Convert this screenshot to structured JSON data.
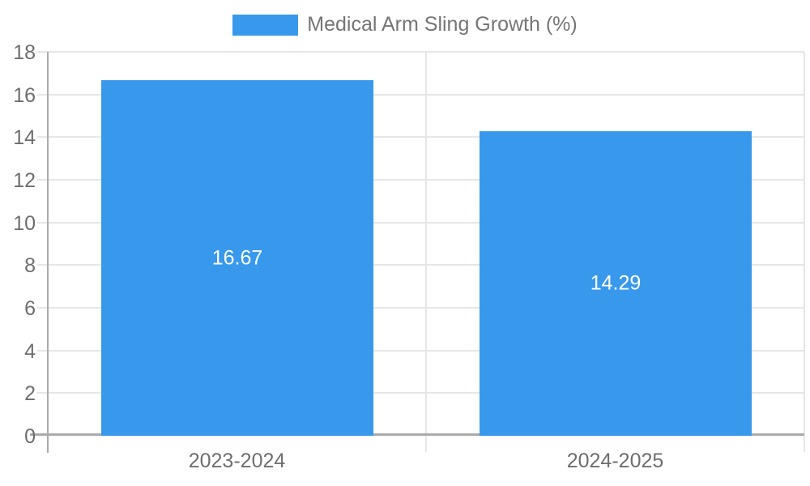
{
  "chart_data": {
    "type": "bar",
    "title": "Medical Arm Sling Growth (%)",
    "categories": [
      "2023-2024",
      "2024-2025"
    ],
    "values": [
      16.67,
      14.29
    ],
    "value_labels": [
      "16.67",
      "14.29"
    ],
    "xlabel": "",
    "ylabel": "",
    "ylim": [
      0,
      18
    ],
    "y_ticks": [
      0,
      2,
      4,
      6,
      8,
      10,
      12,
      14,
      16,
      18
    ],
    "grid": true,
    "legend_position": "top",
    "colors": {
      "bar": "#3898EC",
      "value_label": "#FFFFFF",
      "axis_text": "#6E6E6E",
      "legend_text": "#757575",
      "grid_line": "#E6E6E6",
      "axis_line": "#ABABAB",
      "background": "#FFFFFF"
    }
  }
}
